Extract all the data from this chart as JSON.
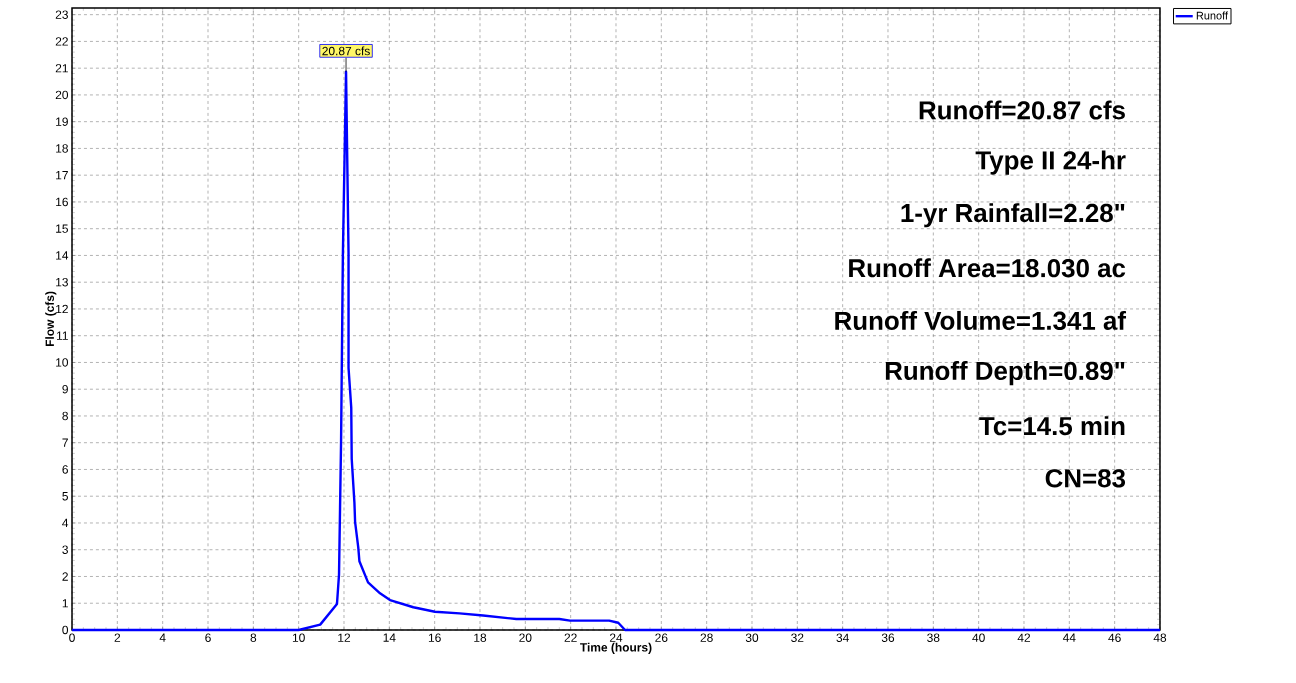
{
  "chart_data": {
    "type": "line",
    "xlabel": "Time  (hours)",
    "ylabel": "Flow  (cfs)",
    "x": [
      0,
      10.0,
      10.95,
      11.69,
      11.78,
      11.87,
      11.95,
      12.09,
      12.2,
      12.2,
      12.32,
      12.34,
      12.46,
      12.49,
      12.63,
      12.68,
      13.06,
      13.59,
      14.03,
      15.06,
      16.01,
      17.1,
      18.14,
      19.6,
      21.5,
      21.97,
      23.7,
      24.1,
      24.4,
      48
    ],
    "series": [
      {
        "name": "Runoff",
        "color": "#0000ff",
        "values": [
          0,
          0,
          0.2,
          0.97,
          2.07,
          7.0,
          14.0,
          20.87,
          14.1,
          9.8,
          8.3,
          6.4,
          4.75,
          4.03,
          3.08,
          2.57,
          1.78,
          1.37,
          1.12,
          0.85,
          0.68,
          0.62,
          0.54,
          0.41,
          0.41,
          0.35,
          0.35,
          0.27,
          0,
          0
        ]
      }
    ],
    "xlim": [
      0,
      48
    ],
    "ylim": [
      0,
      23.25
    ],
    "xticks": [
      0,
      2,
      4,
      6,
      8,
      10,
      12,
      14,
      16,
      18,
      20,
      22,
      24,
      26,
      28,
      30,
      32,
      34,
      36,
      38,
      40,
      42,
      44,
      46,
      48
    ],
    "yticks": [
      0,
      1,
      2,
      3,
      4,
      5,
      6,
      7,
      8,
      9,
      10,
      11,
      12,
      13,
      14,
      15,
      16,
      17,
      18,
      19,
      20,
      21,
      22,
      23
    ],
    "grid": true,
    "legend": "top right",
    "annotations": [
      {
        "text": "20.87 cfs",
        "x": 12.09,
        "y": 20.87
      },
      "Runoff=20.87 cfs",
      "Type II 24-hr",
      "1-yr Rainfall=2.28\"",
      "Runoff Area=18.030 ac",
      "Runoff Volume=1.341 af",
      "Runoff Depth=0.89\"",
      "Tc=14.5 min",
      "CN=83"
    ]
  }
}
